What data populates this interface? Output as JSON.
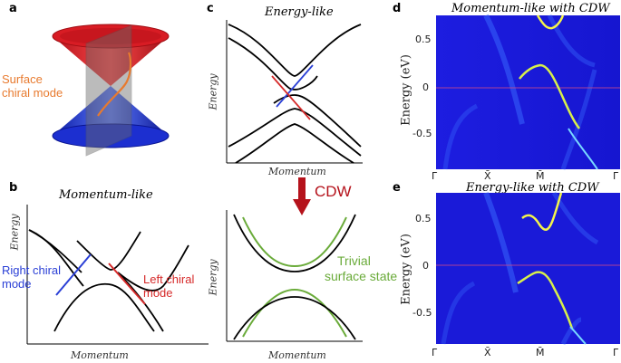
{
  "panels": {
    "a": {
      "label": "a",
      "annotation_lines": [
        "Surface",
        "chiral mode"
      ],
      "annotation_color": "#e87a2e"
    },
    "b": {
      "label": "b",
      "title": "Momentum-like",
      "xlabel": "Momentum",
      "ylabel": "Energy",
      "right_mode_lines": [
        "Right chiral",
        "mode"
      ],
      "left_mode_lines": [
        "Left chiral",
        "mode"
      ],
      "right_color": "#2a3fd6",
      "left_color": "#d62a2a"
    },
    "c": {
      "label": "c",
      "title": "Energy-like",
      "xlabel_top": "Momentum",
      "ylabel_top": "Energy",
      "arrow_label": "CDW",
      "arrow_color": "#b5121b",
      "xlabel_bottom": "Momentum",
      "ylabel_bottom": "Energy",
      "trivial_lines": [
        "Trivial",
        "surface state"
      ],
      "trivial_color": "#6aab3a"
    },
    "d": {
      "label": "d",
      "title": "Momentum-like with CDW",
      "ylabel": "Energy (eV)",
      "yticks": [
        "0.5",
        "0",
        "-0.5"
      ],
      "xticks": [
        "Γ̄",
        "X̄",
        "M̄",
        "Γ̄"
      ]
    },
    "e": {
      "label": "e",
      "title": "Energy-like with CDW",
      "ylabel": "Energy (eV)",
      "yticks": [
        "0.5",
        "0",
        "-0.5"
      ],
      "xticks": [
        "Γ̄",
        "X̄",
        "M̄",
        "Γ̄"
      ]
    }
  }
}
